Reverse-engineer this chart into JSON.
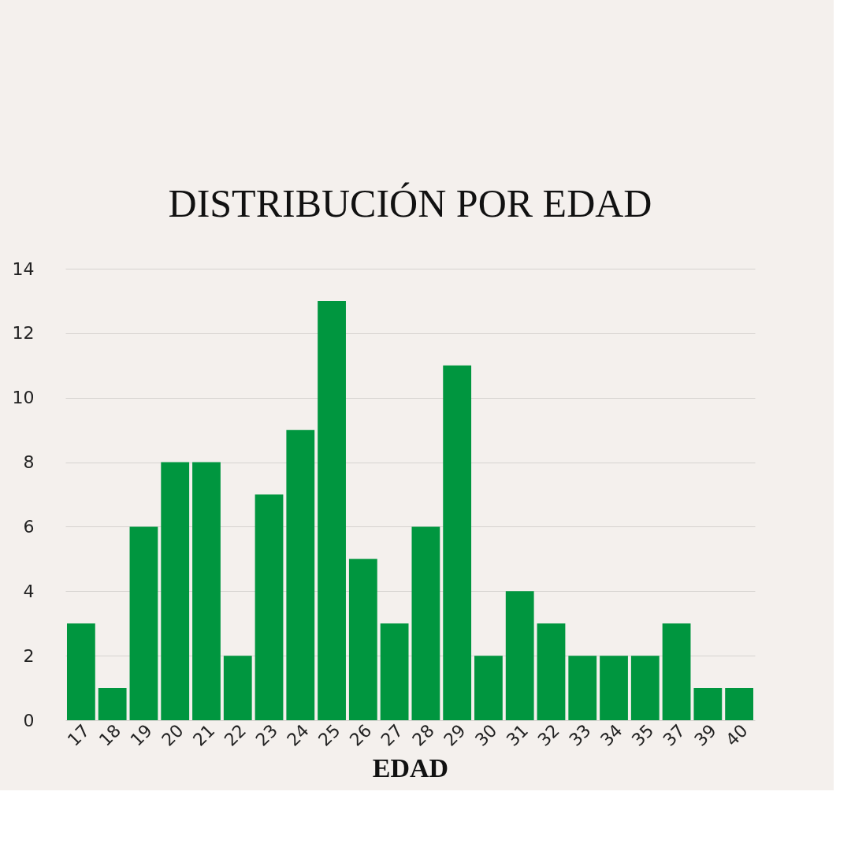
{
  "chart_data": {
    "type": "bar",
    "title": "DISTRIBUCIÓN POR EDAD",
    "xlabel": "EDAD",
    "categories": [
      "17",
      "18",
      "19",
      "20",
      "21",
      "22",
      "23",
      "24",
      "25",
      "26",
      "27",
      "28",
      "29",
      "30",
      "31",
      "32",
      "33",
      "34",
      "35",
      "37",
      "39",
      "40"
    ],
    "values": [
      3,
      1,
      6,
      8,
      8,
      2,
      7,
      9,
      13,
      5,
      3,
      6,
      11,
      2,
      4,
      3,
      2,
      2,
      2,
      3,
      1,
      1
    ],
    "color": "#00963f",
    "ylim": [
      0,
      14
    ],
    "yticks": [
      0,
      2,
      4,
      6,
      8,
      10,
      12,
      14
    ],
    "grid": "y"
  }
}
